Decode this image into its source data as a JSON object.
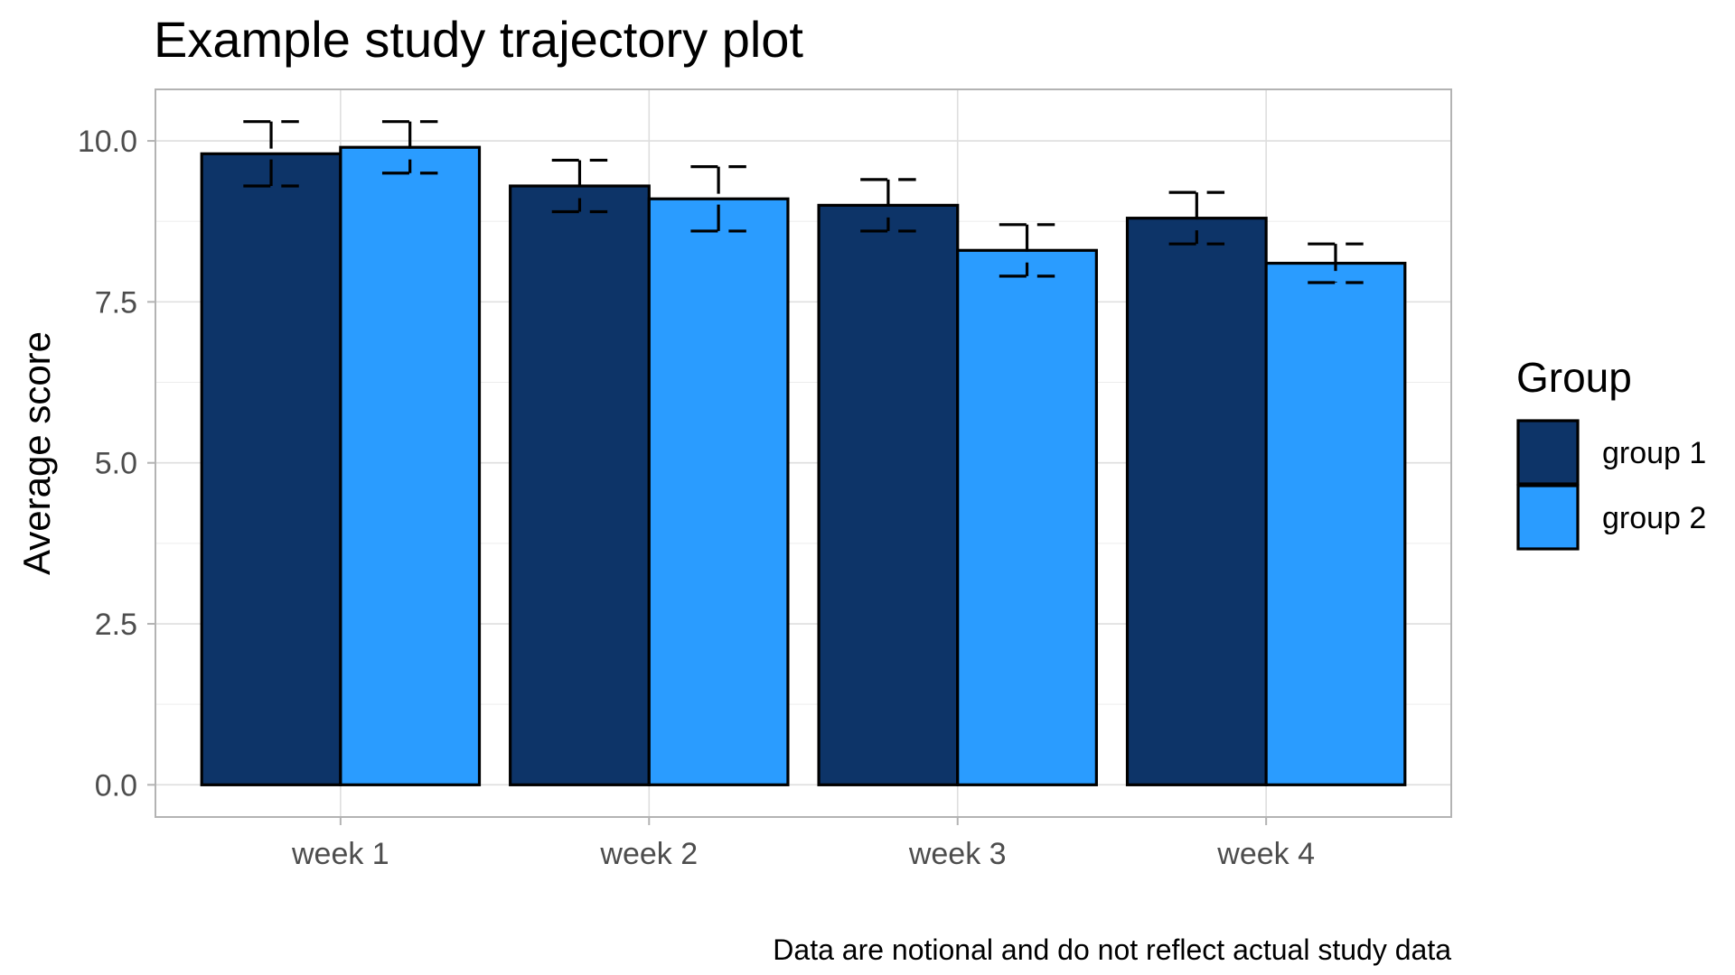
{
  "chart_data": {
    "type": "bar",
    "title": "Example study trajectory plot",
    "xlabel": "",
    "ylabel": "Average score",
    "caption": "Data are notional and do not reflect actual study data",
    "categories": [
      "week 1",
      "week 2",
      "week 3",
      "week 4"
    ],
    "ylim": [
      -0.5,
      10.8
    ],
    "yticks": [
      0.0,
      2.5,
      5.0,
      7.5,
      10.0
    ],
    "ytick_labels": [
      "0.0",
      "2.5",
      "5.0",
      "7.5",
      "10.0"
    ],
    "grid": true,
    "legend": {
      "title": "Group",
      "position": "right"
    },
    "series": [
      {
        "name": "group 1",
        "color": "#0d3468",
        "values": [
          9.8,
          9.3,
          9.0,
          8.8
        ],
        "error_low": [
          9.3,
          8.9,
          8.6,
          8.4
        ],
        "error_high": [
          10.3,
          9.7,
          9.4,
          9.2
        ]
      },
      {
        "name": "group 2",
        "color": "#2a9cff",
        "values": [
          9.9,
          9.1,
          8.3,
          8.1
        ],
        "error_low": [
          9.5,
          8.6,
          7.9,
          7.8
        ],
        "error_high": [
          10.3,
          9.6,
          8.7,
          8.4
        ]
      }
    ]
  }
}
